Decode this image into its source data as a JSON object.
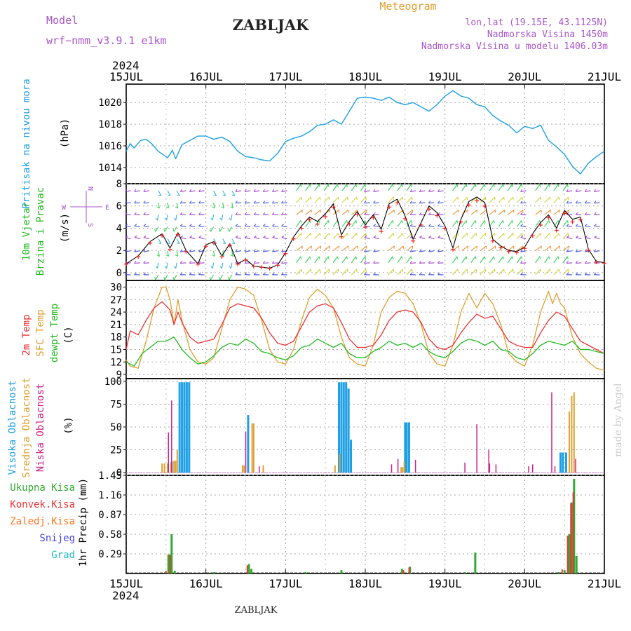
{
  "header": {
    "model_label": "Model",
    "model_value": "wrf−nmm_v3.9.1  e1km",
    "station_title": "ZABLJAK",
    "product_title": "Meteogram",
    "coords": "lon,lat (19.15E, 43.1125N)",
    "elevation": "Nadmorska Visina 1450m",
    "model_elevation": "Nadmorska Visina u modelu 1406.03m",
    "year": "2024",
    "footer_station": "ZABLJAK",
    "credit": "made by Angel"
  },
  "colors": {
    "pressure": "#1ea0e6",
    "wind_speed": "#000000",
    "wind_gust": "#ee2222",
    "temp_2m": "#ee3333",
    "temp_sfc": "#e0a030",
    "dewpoint": "#22bb22",
    "cloud_high": "#1ea0e6",
    "cloud_mid": "#e0a030",
    "cloud_low": "#cc2288",
    "precip_total": "#33aa33",
    "precip_conv": "#ee3333",
    "precip_strat": "#ff7722",
    "snow": "#4444dd",
    "graupel": "#22bbbb",
    "credit": "#cccccc",
    "purple_text": "#aa55cc",
    "orange_text": "#e0a030"
  },
  "chart_data": [
    {
      "type": "line",
      "panel": "pressure",
      "ylabel": "Pritisak na nivou mora",
      "unit": "(hPa)",
      "yticks": [
        1014,
        1016,
        1018,
        1020
      ],
      "ylim": [
        1012.5,
        1021.7
      ],
      "xticks": [
        "15JUL",
        "16JUL",
        "17JUL",
        "18JUL",
        "19JUL",
        "20JUL",
        "21JUL"
      ],
      "grid": true,
      "series": [
        {
          "t": [
            0,
            0.05,
            0.1,
            0.18,
            0.25,
            0.32,
            0.4,
            0.48,
            0.52,
            0.58,
            0.62,
            0.7,
            0.8,
            0.9,
            1.0,
            1.1,
            1.2,
            1.3,
            1.4,
            1.5,
            1.6,
            1.7,
            1.8,
            1.9,
            2.0,
            2.1,
            2.2,
            2.3,
            2.4,
            2.5,
            2.6,
            2.7,
            2.8,
            2.9,
            3.0,
            3.1,
            3.2,
            3.3,
            3.4,
            3.5,
            3.6,
            3.7,
            3.8,
            3.9,
            4.0,
            4.1,
            4.2,
            4.3,
            4.4,
            4.5,
            4.6,
            4.7,
            4.8,
            4.9,
            5.0,
            5.1,
            5.2,
            5.3,
            5.4,
            5.5,
            5.6,
            5.7,
            5.8,
            5.9,
            6.0
          ],
          "values": [
            1015.5,
            1016.2,
            1015.8,
            1016.5,
            1016.6,
            1016.2,
            1015.5,
            1015.1,
            1014.9,
            1015.6,
            1014.8,
            1016.1,
            1016.5,
            1016.9,
            1016.9,
            1016.6,
            1016.8,
            1016.4,
            1015.5,
            1015.0,
            1014.9,
            1014.7,
            1014.6,
            1015.3,
            1016.4,
            1016.7,
            1016.9,
            1017.3,
            1017.9,
            1018.0,
            1018.4,
            1018.0,
            1019.2,
            1020.4,
            1020.5,
            1020.4,
            1020.2,
            1020.5,
            1020.0,
            1019.8,
            1020.0,
            1019.6,
            1019.2,
            1019.8,
            1020.6,
            1021.1,
            1020.6,
            1020.4,
            1019.8,
            1019.6,
            1018.8,
            1018.3,
            1017.9,
            1017.2,
            1017.8,
            1017.6,
            1017.9,
            1016.5,
            1015.9,
            1015.2,
            1014.1,
            1013.4,
            1014.4,
            1015.0,
            1015.5
          ]
        }
      ]
    },
    {
      "type": "line",
      "panel": "wind",
      "ylabel": "10m Vjetar",
      "ylabel2": "Brzina i Pravac",
      "unit": "(m/s)",
      "compass": [
        "W",
        "E",
        "N",
        "S"
      ],
      "yticks": [
        0,
        2,
        4,
        6,
        8
      ],
      "ylim": [
        -0.7,
        8
      ],
      "series": [
        {
          "name": "speed",
          "t": [
            0.0,
            0.15,
            0.3,
            0.45,
            0.55,
            0.65,
            0.75,
            0.9,
            1.0,
            1.1,
            1.2,
            1.3,
            1.4,
            1.5,
            1.6,
            1.7,
            1.8,
            1.9,
            2.0,
            2.1,
            2.2,
            2.3,
            2.4,
            2.5,
            2.6,
            2.7,
            2.8,
            2.9,
            3.0,
            3.1,
            3.2,
            3.3,
            3.4,
            3.5,
            3.6,
            3.7,
            3.8,
            3.9,
            4.0,
            4.1,
            4.2,
            4.3,
            4.4,
            4.5,
            4.6,
            4.7,
            4.8,
            4.9,
            5.0,
            5.1,
            5.2,
            5.3,
            5.4,
            5.5,
            5.6,
            5.7,
            5.8,
            5.9,
            6.0
          ],
          "values": [
            0.8,
            1.5,
            2.8,
            3.5,
            2.2,
            3.6,
            2.0,
            0.8,
            2.5,
            2.8,
            1.5,
            2.6,
            0.8,
            1.2,
            0.6,
            0.5,
            0.4,
            0.7,
            1.8,
            3.2,
            4.2,
            5.0,
            4.6,
            5.3,
            6.2,
            3.4,
            4.6,
            5.5,
            4.3,
            5.2,
            3.9,
            6.2,
            6.6,
            5.1,
            3.0,
            4.5,
            6.0,
            5.4,
            4.2,
            2.2,
            4.8,
            6.4,
            6.8,
            6.3,
            3.0,
            2.4,
            2.0,
            1.9,
            2.3,
            3.5,
            4.5,
            5.2,
            4.0,
            5.6,
            4.8,
            5.0,
            2.1,
            1.0,
            0.9
          ]
        }
      ]
    },
    {
      "type": "line",
      "panel": "temperature",
      "ylabel": "2m Temp",
      "ylabel2": "SFC Temp",
      "ylabel3": "dewpt Temp",
      "unit": "(C)",
      "yticks": [
        9,
        12,
        15,
        18,
        21,
        24,
        27,
        30
      ],
      "ylim": [
        8,
        31.6
      ],
      "series": [
        {
          "name": "2m Temp",
          "t": [
            0.0,
            0.05,
            0.15,
            0.25,
            0.35,
            0.45,
            0.55,
            0.6,
            0.65,
            0.7,
            0.8,
            0.9,
            1.0,
            1.1,
            1.2,
            1.3,
            1.4,
            1.5,
            1.6,
            1.7,
            1.8,
            1.9,
            2.0,
            2.1,
            2.2,
            2.3,
            2.4,
            2.5,
            2.6,
            2.7,
            2.8,
            2.9,
            3.0,
            3.1,
            3.2,
            3.3,
            3.4,
            3.5,
            3.6,
            3.7,
            3.8,
            3.9,
            4.0,
            4.1,
            4.2,
            4.3,
            4.4,
            4.5,
            4.6,
            4.7,
            4.8,
            4.9,
            5.0,
            5.1,
            5.2,
            5.3,
            5.4,
            5.5,
            5.6,
            5.7,
            5.8,
            5.9,
            6.0
          ],
          "values": [
            15.0,
            19.5,
            18.5,
            22.0,
            25.0,
            26.5,
            24.5,
            21.0,
            24.0,
            21.5,
            18.0,
            16.5,
            17.0,
            17.5,
            21.0,
            25.0,
            26.0,
            25.5,
            25.0,
            22.5,
            19.0,
            16.5,
            16.0,
            17.0,
            20.5,
            24.0,
            25.5,
            26.0,
            25.0,
            21.5,
            17.5,
            15.5,
            15.5,
            16.0,
            18.5,
            22.0,
            24.0,
            24.5,
            24.0,
            21.5,
            17.5,
            15.5,
            15.0,
            16.0,
            19.0,
            21.5,
            23.5,
            22.5,
            23.0,
            20.0,
            17.0,
            16.0,
            15.5,
            15.5,
            19.0,
            22.0,
            24.0,
            23.0,
            20.0,
            17.0,
            16.0,
            15.0,
            14.0
          ]
        },
        {
          "name": "SFC Temp",
          "t": [
            0.0,
            0.05,
            0.15,
            0.25,
            0.35,
            0.45,
            0.5,
            0.55,
            0.6,
            0.65,
            0.7,
            0.8,
            0.9,
            1.0,
            1.1,
            1.2,
            1.3,
            1.4,
            1.5,
            1.6,
            1.7,
            1.8,
            1.9,
            2.0,
            2.1,
            2.2,
            2.3,
            2.4,
            2.5,
            2.6,
            2.7,
            2.8,
            2.9,
            3.0,
            3.1,
            3.2,
            3.3,
            3.4,
            3.5,
            3.6,
            3.7,
            3.8,
            3.9,
            4.0,
            4.1,
            4.2,
            4.3,
            4.4,
            4.5,
            4.6,
            4.7,
            4.8,
            4.9,
            5.0,
            5.1,
            5.2,
            5.3,
            5.35,
            5.4,
            5.45,
            5.5,
            5.6,
            5.7,
            5.8,
            5.9,
            6.0
          ],
          "values": [
            12.5,
            11.0,
            10.5,
            17.0,
            25.0,
            30.0,
            30.0,
            27.0,
            21.0,
            27.0,
            22.0,
            15.0,
            12.0,
            11.5,
            13.0,
            20.0,
            27.0,
            30.0,
            29.5,
            28.0,
            22.0,
            15.0,
            12.0,
            11.5,
            15.0,
            22.0,
            27.5,
            29.5,
            28.0,
            25.0,
            18.0,
            13.0,
            11.5,
            11.0,
            16.0,
            24.0,
            27.5,
            29.0,
            28.5,
            26.0,
            21.0,
            14.0,
            11.5,
            11.0,
            16.0,
            24.0,
            28.5,
            25.0,
            28.5,
            26.0,
            21.0,
            14.0,
            12.0,
            11.0,
            16.0,
            24.0,
            29.0,
            26.0,
            28.5,
            26.0,
            25.0,
            18.0,
            14.0,
            12.0,
            10.5,
            10.0
          ]
        },
        {
          "name": "dewpt Temp",
          "t": [
            0.0,
            0.1,
            0.2,
            0.3,
            0.4,
            0.5,
            0.6,
            0.7,
            0.8,
            0.9,
            1.0,
            1.1,
            1.2,
            1.3,
            1.4,
            1.5,
            1.6,
            1.7,
            1.8,
            1.9,
            2.0,
            2.1,
            2.2,
            2.3,
            2.4,
            2.5,
            2.6,
            2.7,
            2.8,
            2.9,
            3.0,
            3.1,
            3.2,
            3.3,
            3.4,
            3.5,
            3.6,
            3.7,
            3.8,
            3.9,
            4.0,
            4.1,
            4.2,
            4.3,
            4.4,
            4.5,
            4.6,
            4.7,
            4.8,
            4.9,
            5.0,
            5.1,
            5.2,
            5.3,
            5.4,
            5.5,
            5.6,
            5.7,
            5.8,
            5.9,
            6.0
          ],
          "values": [
            12.0,
            11.0,
            14.0,
            15.5,
            17.0,
            17.0,
            18.0,
            15.0,
            13.0,
            11.5,
            12.0,
            13.5,
            15.5,
            16.5,
            16.0,
            17.5,
            16.5,
            14.5,
            14.0,
            13.0,
            12.5,
            13.5,
            15.5,
            16.0,
            17.5,
            16.5,
            15.5,
            16.5,
            14.0,
            13.0,
            13.0,
            14.5,
            15.5,
            17.0,
            16.0,
            16.5,
            15.5,
            16.5,
            14.5,
            13.5,
            13.0,
            14.5,
            16.5,
            17.5,
            17.0,
            16.0,
            17.0,
            15.0,
            14.5,
            13.0,
            12.5,
            14.0,
            16.0,
            17.0,
            16.5,
            16.0,
            17.0,
            15.0,
            15.0,
            14.5,
            14.0
          ]
        }
      ]
    },
    {
      "type": "bar",
      "panel": "clouds",
      "ylabel": "Visoka Oblacnost",
      "ylabel2": "Srednja Oblacnost",
      "ylabel3": "Niska Oblacnost",
      "unit": "(%)",
      "yticks": [
        0,
        25,
        50,
        75,
        100
      ],
      "ylim": [
        -3,
        103
      ],
      "series": [
        {
          "name": "Visoka Oblacnost",
          "t": [
            0.57,
            0.67,
            0.7,
            0.73,
            0.76,
            0.79,
            1.53,
            2.67,
            2.7,
            2.73,
            2.76,
            2.79,
            2.82,
            3.5,
            3.52,
            3.55,
            5.45,
            5.48,
            5.52
          ],
          "values": [
            12,
            99,
            99,
            99,
            99,
            99,
            63,
            99,
            99,
            99,
            99,
            92,
            36,
            55,
            55,
            55,
            22,
            22,
            22
          ]
        },
        {
          "name": "Srednja Oblacnost",
          "t": [
            0.45,
            0.48,
            0.52,
            0.56,
            0.6,
            0.62,
            0.64,
            1.46,
            1.48,
            1.58,
            1.6,
            1.72,
            2.68,
            2.62,
            3.45,
            3.47,
            3.49,
            5.56,
            5.59,
            5.62
          ],
          "values": [
            10,
            10,
            10,
            10,
            13,
            13,
            25,
            8,
            8,
            54,
            54,
            8,
            20,
            8,
            6,
            6,
            12,
            67,
            84,
            88
          ]
        },
        {
          "name": "Niska Oblacnost",
          "t": [
            0.53,
            0.57,
            1.5,
            1.67,
            3.33,
            3.41,
            3.63,
            4.25,
            4.4,
            4.55,
            4.56,
            4.64,
            5.05,
            5.1,
            5.34,
            5.38,
            5.64
          ],
          "values": [
            44,
            79,
            45,
            7,
            9,
            15,
            14,
            11,
            53,
            25,
            10,
            9,
            7,
            9,
            88,
            7,
            15
          ]
        }
      ]
    },
    {
      "type": "bar",
      "panel": "precip",
      "ylabel": "1hr Precip (mm)",
      "legend": [
        "Ukupna Kisa",
        "Konvek.Kisa",
        "Zaledj.Kisa",
        "Snijeg",
        "Grad"
      ],
      "yticks": [
        0.29,
        0.58,
        0.87,
        1.16,
        1.45
      ],
      "ylim": [
        0,
        1.45
      ],
      "series": [
        {
          "name": "Ukupna Kisa",
          "t": [
            0.53,
            0.57,
            0.61,
            1.1,
            1.54,
            1.57,
            2.25,
            2.7,
            3.46,
            3.56,
            4.25,
            4.38,
            5.43,
            5.5,
            5.56,
            5.59,
            5.62,
            5.65
          ],
          "values": [
            0.28,
            0.58,
            0.04,
            0.02,
            0.14,
            0.07,
            0.02,
            0.05,
            0.07,
            0.1,
            0.02,
            0.31,
            0.02,
            0.05,
            0.58,
            1.05,
            1.4,
            0.26
          ]
        },
        {
          "name": "Konvek.Kisa",
          "t": [
            0.5,
            0.55,
            1.52,
            3.48,
            3.55,
            5.47,
            5.54,
            5.58,
            5.61
          ],
          "values": [
            0.04,
            0.28,
            0.12,
            0.05,
            0.09,
            0.06,
            0.56,
            1.04,
            1.2
          ]
        }
      ]
    }
  ]
}
